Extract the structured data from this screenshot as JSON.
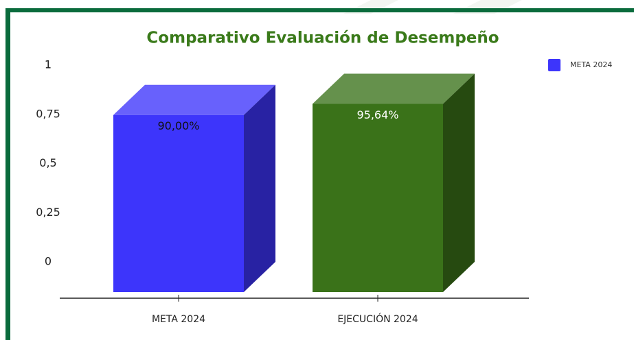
{
  "chart_data": {
    "type": "bar3d",
    "title": "Comparativo Evaluación de Desempeño",
    "categories": [
      "META 2024",
      "EJECUCIÓN 2024"
    ],
    "values": [
      0.9,
      0.9564
    ],
    "value_labels": [
      "90,00%",
      "95,64%"
    ],
    "colors": [
      "#3d35fb",
      "#3a7219"
    ],
    "label_colors": [
      "#111111",
      "#ffffff"
    ],
    "legend": {
      "label": "META 2024",
      "color": "#3d35fb",
      "position": "top-right"
    },
    "ylim": [
      0,
      1
    ],
    "yticks": [
      0,
      {
        "value": 0.25,
        "label": "0,25"
      },
      {
        "value": 0.5,
        "label": "0,5"
      },
      {
        "value": 0.75,
        "label": "0,75"
      },
      1
    ],
    "grid": false
  }
}
